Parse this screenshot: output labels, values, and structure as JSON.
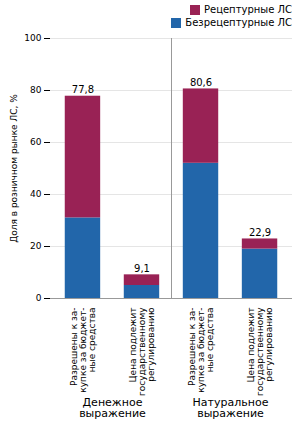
{
  "chart_data": {
    "type": "bar",
    "stacked": true,
    "categories": [
      "Разрешены к за-\nкупке за бюджет-\nные средства",
      "Цена подлежит\nгосударственному\nрегулированию",
      "Разрешены к за-\nкупке за бюджет-\nные средства",
      "Цена подлежит\nгосударственному\nрегулированию"
    ],
    "group_labels": [
      "Денежное\nвыражение",
      "Натуральное\nвыражение"
    ],
    "series": [
      {
        "name": "Безрецептурные ЛС",
        "color": "#2266AA",
        "values": [
          31.0,
          5.0,
          52.0,
          19.0
        ]
      },
      {
        "name": "Рецептурные ЛС",
        "color": "#992255",
        "values": [
          46.8,
          4.1,
          28.6,
          3.9
        ]
      }
    ],
    "totals": [
      77.8,
      9.1,
      80.6,
      22.9
    ],
    "total_labels": [
      "77,8",
      "9,1",
      "80,6",
      "22,9"
    ],
    "ylabel": "Доля в розничном рынке ЛС, %",
    "ylim": [
      0,
      100
    ],
    "yticks": [
      0,
      20,
      40,
      60,
      80,
      100
    ],
    "grid": true,
    "legend": "upper right"
  }
}
